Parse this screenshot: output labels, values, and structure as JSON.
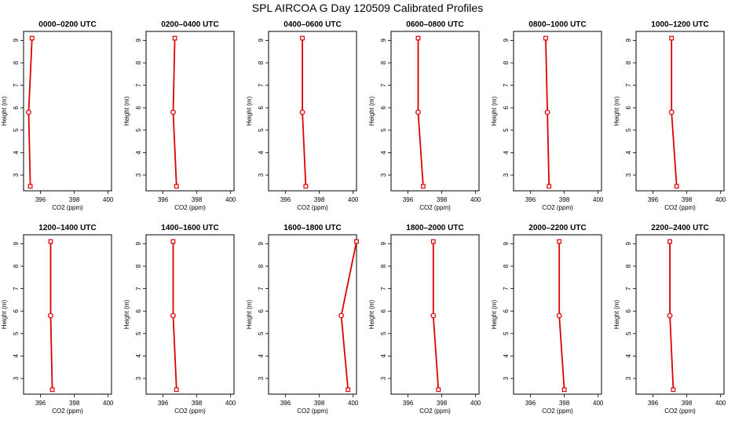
{
  "title": "SPL AIRCOA G  Day 120509  Calibrated Profiles",
  "colors": {
    "series": "#dd0000",
    "axis": "#000000"
  },
  "chart_data": [
    {
      "type": "line",
      "title": "0000–0200 UTC",
      "xlabel": "CO2 (ppm)",
      "ylabel": "Height (m)",
      "xlim": [
        395,
        400.2
      ],
      "ylim": [
        2.3,
        9.4
      ],
      "xticks": [
        396,
        398,
        400
      ],
      "yticks": [
        3,
        4,
        5,
        6,
        7,
        8,
        9
      ],
      "grid": false,
      "x": [
        395.4,
        395.3,
        395.5
      ],
      "y": [
        2.5,
        5.8,
        9.1
      ]
    },
    {
      "type": "line",
      "title": "0200–0400 UTC",
      "xlabel": "CO2 (ppm)",
      "ylabel": "Height (m)",
      "xlim": [
        395,
        400.2
      ],
      "ylim": [
        2.3,
        9.4
      ],
      "xticks": [
        396,
        398,
        400
      ],
      "yticks": [
        3,
        4,
        5,
        6,
        7,
        8,
        9
      ],
      "grid": false,
      "x": [
        396.8,
        396.6,
        396.7
      ],
      "y": [
        2.5,
        5.8,
        9.1
      ]
    },
    {
      "type": "line",
      "title": "0400–0600 UTC",
      "xlabel": "CO2 (ppm)",
      "ylabel": "Height (m)",
      "xlim": [
        395,
        400.2
      ],
      "ylim": [
        2.3,
        9.4
      ],
      "xticks": [
        396,
        398,
        400
      ],
      "yticks": [
        3,
        4,
        5,
        6,
        7,
        8,
        9
      ],
      "grid": false,
      "x": [
        397.2,
        397.0,
        397.0
      ],
      "y": [
        2.5,
        5.8,
        9.1
      ]
    },
    {
      "type": "line",
      "title": "0600–0800 UTC",
      "xlabel": "CO2 (ppm)",
      "ylabel": "Height (m)",
      "xlim": [
        395,
        400.2
      ],
      "ylim": [
        2.3,
        9.4
      ],
      "xticks": [
        396,
        398,
        400
      ],
      "yticks": [
        3,
        4,
        5,
        6,
        7,
        8,
        9
      ],
      "grid": false,
      "x": [
        396.9,
        396.6,
        396.6
      ],
      "y": [
        2.5,
        5.8,
        9.1
      ]
    },
    {
      "type": "line",
      "title": "0800–1000 UTC",
      "xlabel": "CO2 (ppm)",
      "ylabel": "Height (m)",
      "xlim": [
        395,
        400.2
      ],
      "ylim": [
        2.3,
        9.4
      ],
      "xticks": [
        396,
        398,
        400
      ],
      "yticks": [
        3,
        4,
        5,
        6,
        7,
        8,
        9
      ],
      "grid": false,
      "x": [
        397.1,
        397.0,
        396.9
      ],
      "y": [
        2.5,
        5.8,
        9.1
      ]
    },
    {
      "type": "line",
      "title": "1000–1200 UTC",
      "xlabel": "CO2 (ppm)",
      "ylabel": "Height (m)",
      "xlim": [
        395,
        400.2
      ],
      "ylim": [
        2.3,
        9.4
      ],
      "xticks": [
        396,
        398,
        400
      ],
      "yticks": [
        3,
        4,
        5,
        6,
        7,
        8,
        9
      ],
      "grid": false,
      "x": [
        397.4,
        397.1,
        397.1
      ],
      "y": [
        2.5,
        5.8,
        9.1
      ]
    },
    {
      "type": "line",
      "title": "1200–1400 UTC",
      "xlabel": "CO2 (ppm)",
      "ylabel": "Height (m)",
      "xlim": [
        395,
        400.2
      ],
      "ylim": [
        2.3,
        9.4
      ],
      "xticks": [
        396,
        398,
        400
      ],
      "yticks": [
        3,
        4,
        5,
        6,
        7,
        8,
        9
      ],
      "grid": false,
      "x": [
        396.7,
        396.6,
        396.6
      ],
      "y": [
        2.5,
        5.8,
        9.1
      ]
    },
    {
      "type": "line",
      "title": "1400–1600 UTC",
      "xlabel": "CO2 (ppm)",
      "ylabel": "Height (m)",
      "xlim": [
        395,
        400.2
      ],
      "ylim": [
        2.3,
        9.4
      ],
      "xticks": [
        396,
        398,
        400
      ],
      "yticks": [
        3,
        4,
        5,
        6,
        7,
        8,
        9
      ],
      "grid": false,
      "x": [
        396.8,
        396.6,
        396.6
      ],
      "y": [
        2.5,
        5.8,
        9.1
      ]
    },
    {
      "type": "line",
      "title": "1600–1800 UTC",
      "xlabel": "CO2 (ppm)",
      "ylabel": "Height (m)",
      "xlim": [
        395,
        400.2
      ],
      "ylim": [
        2.3,
        9.4
      ],
      "xticks": [
        396,
        398,
        400
      ],
      "yticks": [
        3,
        4,
        5,
        6,
        7,
        8,
        9
      ],
      "grid": false,
      "x": [
        399.7,
        399.3,
        400.2
      ],
      "y": [
        2.5,
        5.8,
        9.1
      ]
    },
    {
      "type": "line",
      "title": "1800–2000 UTC",
      "xlabel": "CO2 (ppm)",
      "ylabel": "Height (m)",
      "xlim": [
        395,
        400.2
      ],
      "ylim": [
        2.3,
        9.4
      ],
      "xticks": [
        396,
        398,
        400
      ],
      "yticks": [
        3,
        4,
        5,
        6,
        7,
        8,
        9
      ],
      "grid": false,
      "x": [
        397.8,
        397.5,
        397.5
      ],
      "y": [
        2.5,
        5.8,
        9.1
      ]
    },
    {
      "type": "line",
      "title": "2000–2200 UTC",
      "xlabel": "CO2 (ppm)",
      "ylabel": "Height (m)",
      "xlim": [
        395,
        400.2
      ],
      "ylim": [
        2.3,
        9.4
      ],
      "xticks": [
        396,
        398,
        400
      ],
      "yticks": [
        3,
        4,
        5,
        6,
        7,
        8,
        9
      ],
      "grid": false,
      "x": [
        398.0,
        397.7,
        397.7
      ],
      "y": [
        2.5,
        5.8,
        9.1
      ]
    },
    {
      "type": "line",
      "title": "2200–2400 UTC",
      "xlabel": "CO2 (ppm)",
      "ylabel": "Height (m)",
      "xlim": [
        395,
        400.2
      ],
      "ylim": [
        2.3,
        9.4
      ],
      "xticks": [
        396,
        398,
        400
      ],
      "yticks": [
        3,
        4,
        5,
        6,
        7,
        8,
        9
      ],
      "grid": false,
      "x": [
        397.2,
        397.0,
        397.0
      ],
      "y": [
        2.5,
        5.8,
        9.1
      ]
    }
  ]
}
